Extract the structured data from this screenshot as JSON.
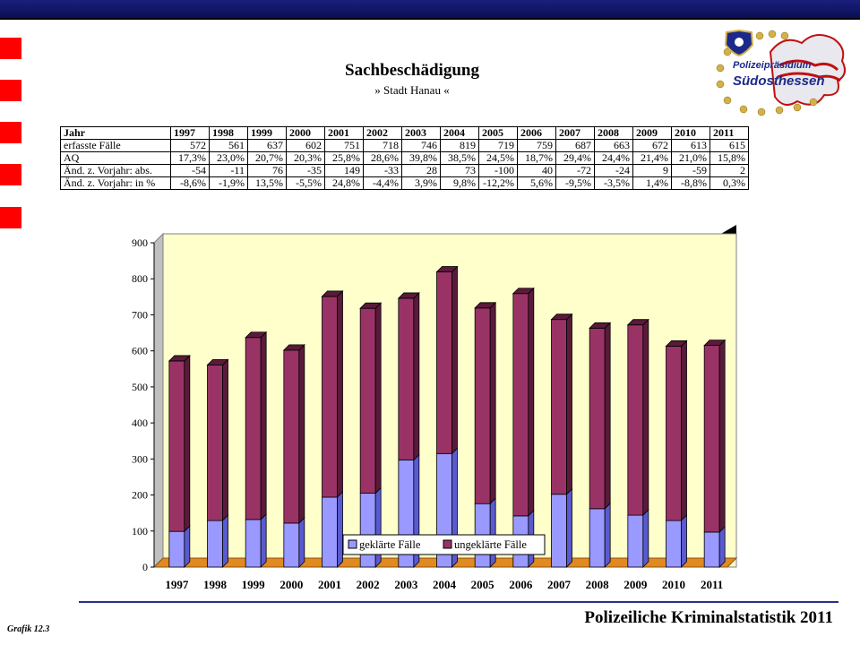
{
  "header": {
    "title": "Sachbeschädigung",
    "subtitle": "» Stadt Hanau «"
  },
  "logo": {
    "line1": "Polizeipräsidium",
    "line2": "Südosthessen"
  },
  "table": {
    "corner": "Jahr",
    "years": [
      "1997",
      "1998",
      "1999",
      "2000",
      "2001",
      "2002",
      "2003",
      "2004",
      "2005",
      "2006",
      "2007",
      "2008",
      "2009",
      "2010",
      "2011"
    ],
    "rows": [
      {
        "label": "erfasste Fälle",
        "values": [
          "572",
          "561",
          "637",
          "602",
          "751",
          "718",
          "746",
          "819",
          "719",
          "759",
          "687",
          "663",
          "672",
          "613",
          "615"
        ]
      },
      {
        "label": "AQ",
        "values": [
          "17,3%",
          "23,0%",
          "20,7%",
          "20,3%",
          "25,8%",
          "28,6%",
          "39,8%",
          "38,5%",
          "24,5%",
          "18,7%",
          "29,4%",
          "24,4%",
          "21,4%",
          "21,0%",
          "15,8%"
        ]
      },
      {
        "label": "Änd. z. Vorjahr: abs.",
        "values": [
          "-54",
          "-11",
          "76",
          "-35",
          "149",
          "-33",
          "28",
          "73",
          "-100",
          "40",
          "-72",
          "-24",
          "9",
          "-59",
          "2"
        ]
      },
      {
        "label": "Änd. z. Vorjahr: in %",
        "values": [
          "-8,6%",
          "-1,9%",
          "13,5%",
          "-5,5%",
          "24,8%",
          "-4,4%",
          "3,9%",
          "9,8%",
          "-12,2%",
          "5,6%",
          "-9,5%",
          "-3,5%",
          "1,4%",
          "-8,8%",
          "0,3%"
        ]
      }
    ]
  },
  "chart_data": {
    "type": "bar",
    "stacked": true,
    "categories": [
      "1997",
      "1998",
      "1999",
      "2000",
      "2001",
      "2002",
      "2003",
      "2004",
      "2005",
      "2006",
      "2007",
      "2008",
      "2009",
      "2010",
      "2011"
    ],
    "series": [
      {
        "name": "geklärte Fälle",
        "color": "#9999ff",
        "values": [
          99,
          129,
          132,
          122,
          194,
          205,
          297,
          315,
          176,
          142,
          202,
          162,
          144,
          129,
          97
        ]
      },
      {
        "name": "ungeklärte Fälle",
        "color": "#993366",
        "values": [
          473,
          432,
          505,
          480,
          557,
          513,
          449,
          504,
          543,
          617,
          485,
          501,
          528,
          484,
          518
        ]
      }
    ],
    "ylim": [
      0,
      900
    ],
    "yticks": [
      "0",
      "100",
      "200",
      "300",
      "400",
      "500",
      "600",
      "700",
      "800",
      "900"
    ],
    "grid": false,
    "legend_position": "bottom-right",
    "plot_background": "#ffffcc"
  },
  "footer": {
    "text": "Polizeiliche Kriminalstatistik 2011",
    "grafik": "Grafik 12.3"
  }
}
